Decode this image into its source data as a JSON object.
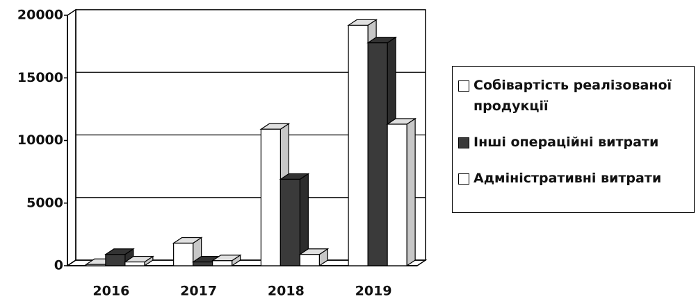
{
  "chart_data": {
    "type": "bar3d",
    "categories": [
      "2016",
      "2017",
      "2018",
      "2019"
    ],
    "series": [
      {
        "name": "Собівартість реалізованої продукції",
        "color": "#ffffff",
        "values": [
          100,
          1800,
          10900,
          19200
        ]
      },
      {
        "name": "Інші операційні витрати",
        "color": "#3a3a3a",
        "values": [
          900,
          300,
          6900,
          17800
        ]
      },
      {
        "name": "Адміністративні витрати",
        "color": "#ffffff",
        "values": [
          300,
          400,
          900,
          11300
        ]
      }
    ],
    "ylim": [
      0,
      20000
    ],
    "yticks": [
      0,
      5000,
      10000,
      15000,
      20000
    ],
    "grid": true,
    "legend": "right"
  }
}
